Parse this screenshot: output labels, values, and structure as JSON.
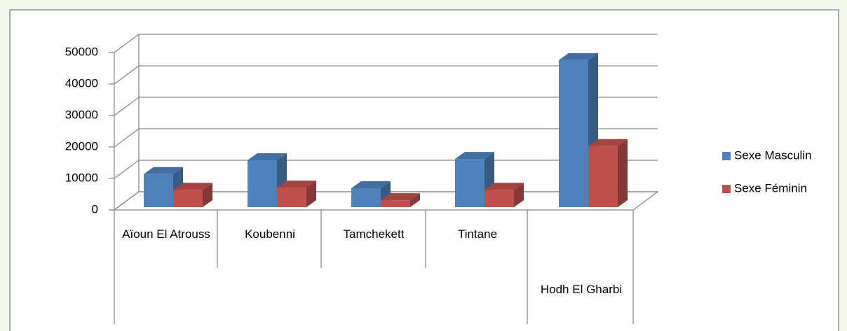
{
  "chart_data": {
    "type": "bar3d",
    "categories": [
      "Aïoun El Atrouss",
      "Koubenni",
      "Tamchekett",
      "Tintane",
      "Hodh El Gharbi"
    ],
    "series": [
      {
        "name": "Sexe Masculin",
        "color": "#4f81bd",
        "values": [
          10500,
          14900,
          6000,
          15300,
          46700
        ]
      },
      {
        "name": "Sexe Féminin",
        "color": "#c0504d",
        "values": [
          5500,
          6200,
          2200,
          5500,
          19400
        ]
      }
    ],
    "ylim": [
      0,
      50000
    ],
    "yticks": [
      0,
      10000,
      20000,
      30000,
      40000,
      50000
    ],
    "grid": true,
    "legend": "right"
  }
}
